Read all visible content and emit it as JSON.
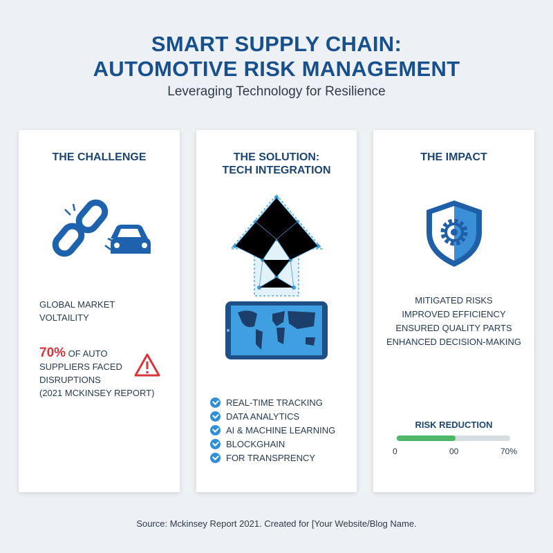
{
  "header": {
    "title_line1": "SMART SUPPLY CHAIN:",
    "title_line2": "AUTOMOTIVE RISK MANAGEMENT",
    "subtitle": "Leveraging Technology for Resilience"
  },
  "challenge": {
    "heading": "THE CHALLENGE",
    "icon": "broken-chain-car-icon",
    "market_line1": "GLOBAL MARKET",
    "market_line2": "VOLTAILITY",
    "stat": "70%",
    "stat_rest": " OF AUTO",
    "stat_line2": "SUPPLIERS FACED",
    "stat_line3": "DISRUPTIONS",
    "stat_line4": "(2021 MCKINSEY REPORT)",
    "warning_icon": "warning-icon",
    "accent": "#d9343a"
  },
  "solution": {
    "heading_line1": "THE SOLUTION:",
    "heading_line2": "TECH INTEGRATION",
    "icon": "network-arrow-tablet-map-icon",
    "items": [
      "REAL-TIME TRACKING",
      "DATA ANALYTICS",
      "AI & MACHINE LEARNING",
      "BLOCKGHAIN",
      "FOR TRANSPRENCY"
    ]
  },
  "impact": {
    "heading": "THE IMPACT",
    "icon": "shield-gear-icon",
    "items": [
      "MITIGATED RISKS",
      "IMPROVED EFFICIENCY",
      "ENSURED QUALITY PARTS",
      "ENHANCED DECISION-MAKING"
    ],
    "meter_label": "RISK REDUCTION",
    "meter_fill_percent": 52,
    "meter_color": "#4fb866",
    "tick_start": "0",
    "tick_mid": "00",
    "tick_end": "70%"
  },
  "footer": "Source: Mckinsey Report 2021. Created for [Your Website/Blog Name."
}
